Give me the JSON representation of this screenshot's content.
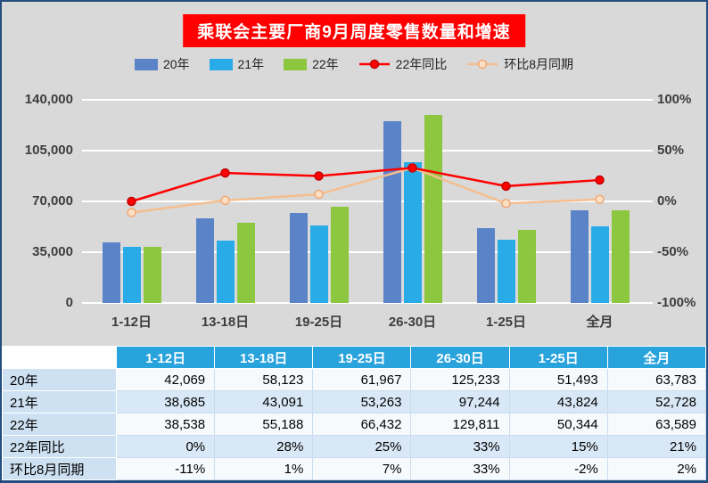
{
  "title": "乘联会主要厂商9月周度零售数量和增速",
  "colors": {
    "chart_background": "#D9D9D9",
    "title_background": "#FE0000",
    "title_text": "#FFFFFF",
    "gridline": "#FFFFFF",
    "axis_text": "#3D3D3D",
    "table_header_background": "#29A3DC",
    "table_label_background": "#CEE1F2",
    "border_navy": "#234E7D"
  },
  "chart_data": {
    "type": "bar+line",
    "title": "乘联会主要厂商9月周度零售数量和增速",
    "categories": [
      "1-12日",
      "13-18日",
      "19-25日",
      "26-30日",
      "1-25日",
      "全月"
    ],
    "bar_series": [
      {
        "name": "20年",
        "color": "#5B84C8",
        "values": [
          42069,
          58123,
          61967,
          125233,
          51493,
          63783
        ]
      },
      {
        "name": "21年",
        "color": "#29ABE8",
        "values": [
          38685,
          43091,
          53263,
          97244,
          43824,
          52728
        ]
      },
      {
        "name": "22年",
        "color": "#8DC63F",
        "values": [
          38538,
          55188,
          66432,
          129811,
          50344,
          63589
        ]
      }
    ],
    "line_series": [
      {
        "name": "22年同比",
        "color": "#FE0000",
        "axis": "right",
        "values_pct": [
          0,
          28,
          25,
          33,
          15,
          21
        ],
        "marker_fill": "#FE0000",
        "marker_stroke": "#C00000"
      },
      {
        "name": "环比8月同期",
        "color": "#F5BE90",
        "axis": "right",
        "values_pct": [
          -11,
          1,
          7,
          33,
          -2,
          2
        ],
        "marker_fill": "#FBDFC4",
        "marker_stroke": "#F0A875"
      }
    ],
    "left_axis": {
      "ticks": [
        "140,000",
        "105,000",
        "70,000",
        "35,000",
        "0"
      ],
      "min": 0,
      "max": 140000
    },
    "right_axis": {
      "ticks": [
        "100%",
        "50%",
        "0%",
        "-50%",
        "-100%"
      ],
      "min": -100,
      "max": 100
    },
    "grid": true,
    "legend_position": "top"
  },
  "table": {
    "col_headers": [
      "",
      "1-12日",
      "13-18日",
      "19-25日",
      "26-30日",
      "1-25日",
      "全月"
    ],
    "rows": [
      {
        "label": "20年",
        "values": [
          "42,069",
          "58,123",
          "61,967",
          "125,233",
          "51,493",
          "63,783"
        ]
      },
      {
        "label": "21年",
        "values": [
          "38,685",
          "43,091",
          "53,263",
          "97,244",
          "43,824",
          "52,728"
        ]
      },
      {
        "label": "22年",
        "values": [
          "38,538",
          "55,188",
          "66,432",
          "129,811",
          "50,344",
          "63,589"
        ]
      },
      {
        "label": "22年同比",
        "values": [
          "0%",
          "28%",
          "25%",
          "33%",
          "15%",
          "21%"
        ]
      },
      {
        "label": "环比8月同期",
        "values": [
          "-11%",
          "1%",
          "7%",
          "33%",
          "-2%",
          "2%"
        ]
      }
    ]
  }
}
